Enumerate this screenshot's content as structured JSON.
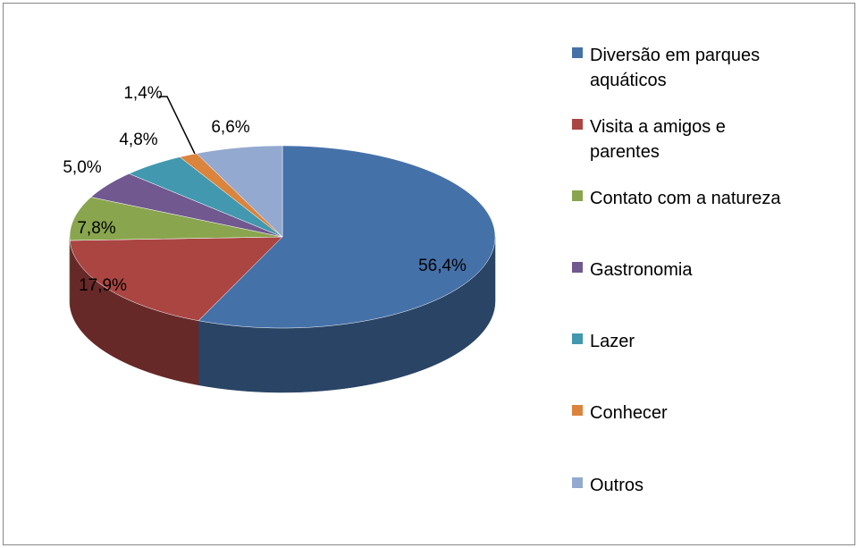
{
  "chart_data": {
    "type": "pie",
    "categories": [
      "Diversão em parques aquáticos",
      "Visita a amigos e parentes",
      "Contato com a natureza",
      "Gastronomia",
      "Lazer",
      "Conhecer",
      "Outros"
    ],
    "values": [
      56.4,
      17.9,
      7.8,
      5.0,
      4.8,
      1.4,
      6.6
    ],
    "value_labels": [
      "56,4%",
      "17,9%",
      "7,8%",
      "5,0%",
      "4,8%",
      "1,4%",
      "6,6%"
    ],
    "colors": [
      "#4571a9",
      "#aa4542",
      "#89a54e",
      "#71588f",
      "#4198af",
      "#db843d",
      "#93a9cf"
    ],
    "legend": "right"
  }
}
